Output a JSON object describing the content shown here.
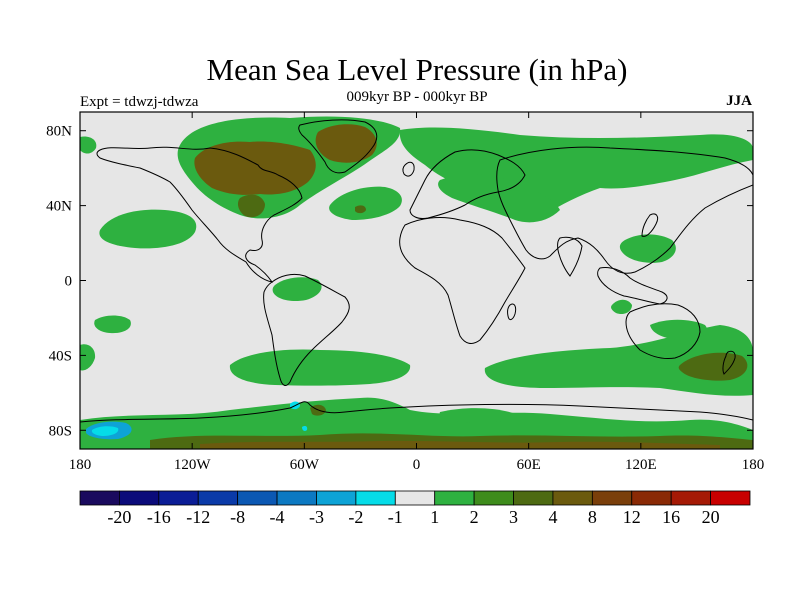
{
  "title": "Mean Sea Level Pressure (in hPa)",
  "subtitle": "009kyr BP - 000kyr BP",
  "experiment": "Expt = tdwzj-tdwza",
  "season": "JJA",
  "map": {
    "lon_range": [
      -180,
      180
    ],
    "lat_range": [
      -90,
      90
    ],
    "background_level": "-1 to 1",
    "lon_ticks": [
      {
        "value": -180,
        "label": "180"
      },
      {
        "value": -120,
        "label": "120W"
      },
      {
        "value": -60,
        "label": "60W"
      },
      {
        "value": 0,
        "label": "0"
      },
      {
        "value": 60,
        "label": "60E"
      },
      {
        "value": 120,
        "label": "120E"
      },
      {
        "value": 180,
        "label": "180"
      }
    ],
    "lat_ticks": [
      {
        "value": 80,
        "label": "80N"
      },
      {
        "value": 40,
        "label": "40N"
      },
      {
        "value": 0,
        "label": "0"
      },
      {
        "value": -40,
        "label": "40S"
      },
      {
        "value": -80,
        "label": "80S"
      }
    ]
  },
  "colorbar": {
    "colors": [
      "#1a0a5e",
      "#0b0b7a",
      "#0b1d96",
      "#0a3aa8",
      "#0b58b3",
      "#0c79c2",
      "#0ea3d6",
      "#05dce8",
      "#e6e6e6",
      "#2eb140",
      "#3e8c1c",
      "#4d6a12",
      "#6b5a0e",
      "#7a3f0a",
      "#8a2a05",
      "#a51a05",
      "#c80000"
    ],
    "labels": [
      "-20",
      "-16",
      "-12",
      "-8",
      "-4",
      "-3",
      "-2",
      "-1",
      "1",
      "2",
      "3",
      "4",
      "8",
      "12",
      "16",
      "20"
    ]
  },
  "chart_data": {
    "type": "heatmap",
    "title": "Mean Sea Level Pressure (in hPa)",
    "subtitle": "009kyr BP - 000kyr BP",
    "projection": "cylindrical equidistant",
    "xlabel": "",
    "ylabel": "",
    "xlim": [
      -180,
      180
    ],
    "ylim": [
      -90,
      90
    ],
    "units": "hPa",
    "levels": [
      -20,
      -16,
      -12,
      -8,
      -4,
      -3,
      -2,
      -1,
      1,
      2,
      3,
      4,
      8,
      12,
      16,
      20
    ],
    "regions": [
      {
        "id": "greenland-arctic",
        "level": "2 to 3",
        "bbox_deg": [
          -105,
          40,
          70,
          90
        ]
      },
      {
        "id": "north-america-high",
        "level": "4 to 8",
        "bbox_deg": [
          -130,
          -75,
          53,
          78
        ]
      },
      {
        "id": "greenland-core",
        "level": "4 to 8",
        "bbox_deg": [
          -55,
          -25,
          62,
          82
        ]
      },
      {
        "id": "north-atlantic",
        "level": "1 to 2",
        "bbox_deg": [
          -40,
          0,
          25,
          52
        ]
      },
      {
        "id": "eurasia-north",
        "level": "1 to 2",
        "bbox_deg": [
          20,
          170,
          40,
          82
        ]
      },
      {
        "id": "north-pacific",
        "level": "1 to 2",
        "bbox_deg": [
          -180,
          -140,
          20,
          55
        ]
      },
      {
        "id": "west-pacific",
        "level": "1 to 2",
        "bbox_deg": [
          -170,
          -135,
          25,
          45
        ]
      },
      {
        "id": "south-america",
        "level": "1 to 2",
        "bbox_deg": [
          -75,
          -55,
          -15,
          0
        ]
      },
      {
        "id": "south-atlantic",
        "level": "1 to 2",
        "bbox_deg": [
          -80,
          -20,
          -55,
          -30
        ]
      },
      {
        "id": "south-indian-pacific",
        "level": "1 to 2",
        "bbox_deg": [
          20,
          180,
          -62,
          -30
        ]
      },
      {
        "id": "new-zealand-high",
        "level": "2 to 3",
        "bbox_deg": [
          135,
          175,
          -50,
          -35
        ]
      },
      {
        "id": "antarctic-coast",
        "level": "1 to 3",
        "bbox_deg": [
          -180,
          180,
          -90,
          -60
        ]
      },
      {
        "id": "ross-sea-low",
        "level": "-3 to -1",
        "bbox_deg": [
          -180,
          -165,
          -84,
          -78
        ]
      }
    ]
  }
}
